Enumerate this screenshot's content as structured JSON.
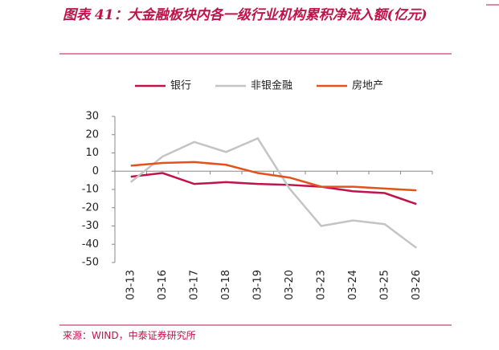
{
  "chart_data": {
    "type": "line",
    "title": "图表 41：大金融板块内各一级行业机构累积净流入额(亿元)",
    "source": "来源：WIND，中泰证券研究所",
    "categories": [
      "03-13",
      "03-16",
      "03-17",
      "03-18",
      "03-19",
      "03-20",
      "03-23",
      "03-24",
      "03-25",
      "03-26"
    ],
    "series": [
      {
        "name": "银行",
        "color": "#c0134a",
        "values": [
          -3,
          -1,
          -7,
          -6,
          -7,
          -7.5,
          -8.5,
          -11,
          -12,
          -18
        ]
      },
      {
        "name": "非银金融",
        "color": "#c4c4c4",
        "values": [
          -6,
          8,
          16,
          10.5,
          18,
          -9.5,
          -30,
          -27,
          -29,
          -42
        ]
      },
      {
        "name": "房地产",
        "color": "#e2531c",
        "values": [
          3,
          4.5,
          5,
          3.5,
          -1,
          -3.5,
          -8.5,
          -8.5,
          -9.5,
          -10.5
        ]
      }
    ],
    "ylim": [
      -50,
      30
    ],
    "yticks": [
      -50,
      -40,
      -30,
      -20,
      -10,
      0,
      10,
      20,
      30
    ],
    "grid": false
  }
}
